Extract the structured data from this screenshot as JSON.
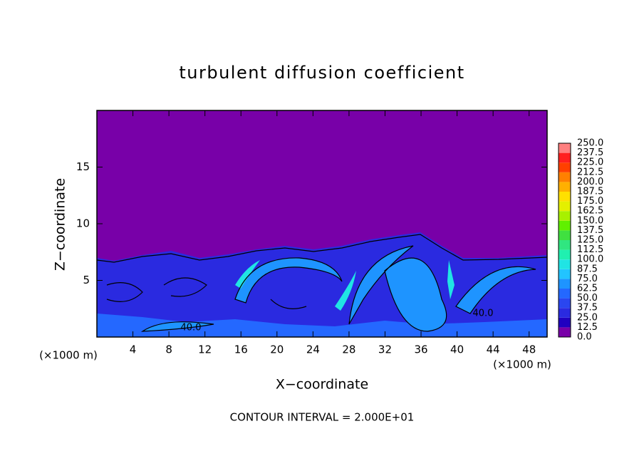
{
  "chart_data": {
    "type": "contour",
    "title": "turbulent diffusion coefficient",
    "xlabel": "X−coordinate",
    "ylabel": "Z−coordinate",
    "x_unit": "(×1000 m)",
    "y_unit": "(×1000 m)",
    "caption": "CONTOUR INTERVAL = 2.000E+01",
    "xlim": [
      0,
      50
    ],
    "xticks": [
      4,
      8,
      12,
      16,
      20,
      24,
      28,
      32,
      36,
      40,
      44,
      48
    ],
    "ylim": [
      0,
      20
    ],
    "yticks": [
      5,
      10,
      15
    ],
    "contour_labels": [
      {
        "value": 40,
        "label": "40.0"
      },
      {
        "value": 40,
        "label": "40.0"
      }
    ],
    "colorbar": {
      "levels": [
        {
          "value": 0,
          "label": "0.0"
        },
        {
          "value": 12.5,
          "label": "12.5"
        },
        {
          "value": 25,
          "label": "25.0"
        },
        {
          "value": 37.5,
          "label": "37.5"
        },
        {
          "value": 50,
          "label": "50.0"
        },
        {
          "value": 62.5,
          "label": "62.5"
        },
        {
          "value": 75,
          "label": "75.0"
        },
        {
          "value": 87.5,
          "label": "87.5"
        },
        {
          "value": 100,
          "label": "100.0"
        },
        {
          "value": 112.5,
          "label": "112.5"
        },
        {
          "value": 125,
          "label": "125.0"
        },
        {
          "value": 137.5,
          "label": "137.5"
        },
        {
          "value": 150,
          "label": "150.0"
        },
        {
          "value": 162.5,
          "label": "162.5"
        },
        {
          "value": 175,
          "label": "175.0"
        },
        {
          "value": 187.5,
          "label": "187.5"
        },
        {
          "value": 200,
          "label": "200.0"
        },
        {
          "value": 212.5,
          "label": "212.5"
        },
        {
          "value": 225,
          "label": "225.0"
        },
        {
          "value": 237.5,
          "label": "237.5"
        },
        {
          "value": 250,
          "label": "250.0"
        }
      ],
      "colors": [
        "#7800a8",
        "#2000c0",
        "#2a2ae0",
        "#2a46f0",
        "#2468ff",
        "#1e94ff",
        "#22c4ff",
        "#20e4e4",
        "#20f0b0",
        "#30e680",
        "#40e040",
        "#60f000",
        "#a8f000",
        "#e4f000",
        "#ffe000",
        "#ffb000",
        "#ff8000",
        "#ff4000",
        "#ff2020",
        "#ff8080"
      ]
    }
  }
}
